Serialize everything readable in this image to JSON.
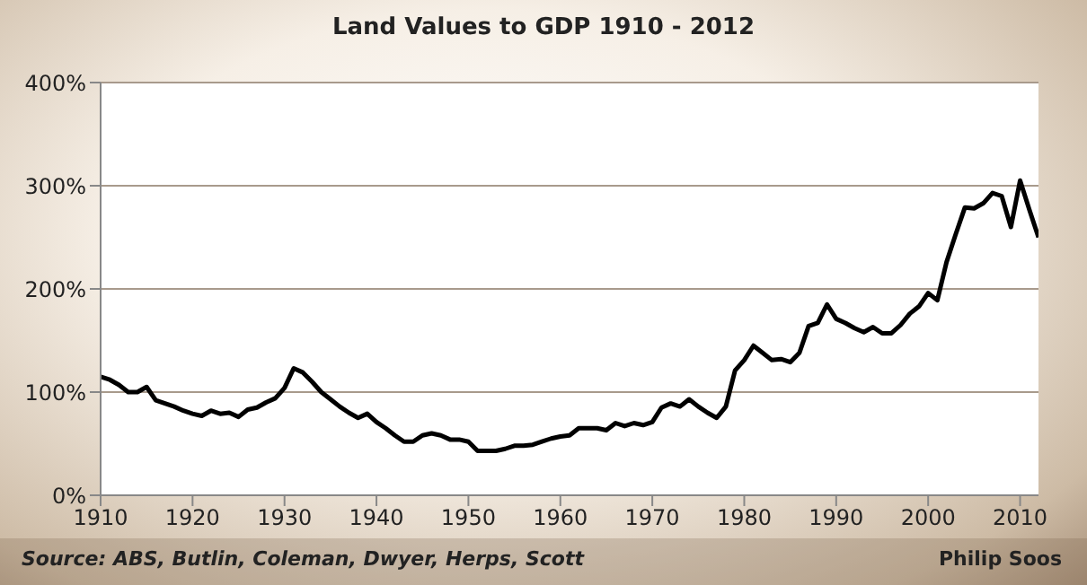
{
  "chart_data": {
    "type": "line",
    "title": "Land Values to GDP 1910 - 2012",
    "annotations": [
      "Source: ABS, Butlin, Coleman, Dwyer, Herps, Scott",
      "Philip Soos"
    ],
    "x": [
      1910,
      1911,
      1912,
      1913,
      1914,
      1915,
      1916,
      1917,
      1918,
      1919,
      1920,
      1921,
      1922,
      1923,
      1924,
      1925,
      1926,
      1927,
      1928,
      1929,
      1930,
      1931,
      1932,
      1933,
      1934,
      1935,
      1936,
      1937,
      1938,
      1939,
      1940,
      1941,
      1942,
      1943,
      1944,
      1945,
      1946,
      1947,
      1948,
      1949,
      1950,
      1951,
      1952,
      1953,
      1954,
      1955,
      1956,
      1957,
      1958,
      1959,
      1960,
      1961,
      1962,
      1963,
      1964,
      1965,
      1966,
      1967,
      1968,
      1969,
      1970,
      1971,
      1972,
      1973,
      1974,
      1975,
      1976,
      1977,
      1978,
      1979,
      1980,
      1981,
      1982,
      1983,
      1984,
      1985,
      1986,
      1987,
      1988,
      1989,
      1990,
      1991,
      1992,
      1993,
      1994,
      1995,
      1996,
      1997,
      1998,
      1999,
      2000,
      2001,
      2002,
      2003,
      2004,
      2005,
      2006,
      2007,
      2008,
      2009,
      2010,
      2011,
      2012
    ],
    "series": [
      {
        "color": "#000000",
        "values": [
          115,
          112,
          107,
          100,
          100,
          105,
          92,
          89,
          86,
          82,
          79,
          77,
          82,
          79,
          80,
          76,
          83,
          85,
          90,
          94,
          104,
          123,
          119,
          110,
          100,
          93,
          86,
          80,
          75,
          79,
          71,
          65,
          58,
          52,
          52,
          58,
          60,
          58,
          54,
          54,
          52,
          43,
          43,
          43,
          45,
          48,
          48,
          49,
          52,
          55,
          57,
          58,
          65,
          65,
          65,
          63,
          70,
          67,
          70,
          68,
          71,
          85,
          89,
          86,
          93,
          86,
          80,
          75,
          86,
          121,
          131,
          145,
          138,
          131,
          132,
          129,
          138,
          164,
          167,
          185,
          171,
          167,
          162,
          158,
          163,
          157,
          157,
          165,
          176,
          183,
          196,
          189,
          226,
          253,
          279,
          278,
          283,
          293,
          290,
          260,
          305,
          277,
          250
        ]
      }
    ],
    "xlim": [
      1910,
      2012
    ],
    "xticks": [
      1910,
      1920,
      1930,
      1940,
      1950,
      1960,
      1970,
      1980,
      1990,
      2000,
      2010
    ],
    "ylim": [
      0,
      400
    ],
    "yticks": [
      {
        "value": 0,
        "label": "0%"
      },
      {
        "value": 100,
        "label": "100%"
      },
      {
        "value": 200,
        "label": "200%"
      },
      {
        "value": 300,
        "label": "300%"
      },
      {
        "value": 400,
        "label": "400%"
      }
    ],
    "grid": "y",
    "marker": "none",
    "line_style": "solid"
  }
}
